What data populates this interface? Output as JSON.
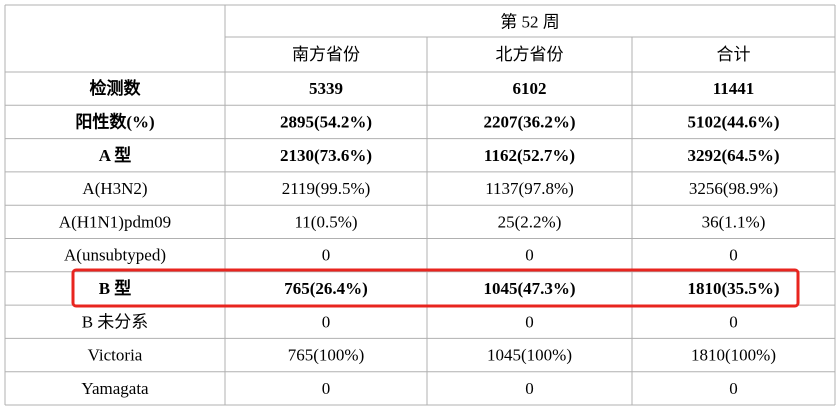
{
  "header": {
    "title": "第 52 周",
    "columns": [
      "南方省份",
      "北方省份",
      "合计"
    ]
  },
  "table": {
    "rows": [
      {
        "cells": [
          "检测数",
          "5339",
          "6102",
          "11441"
        ],
        "bold": true
      },
      {
        "cells": [
          "阳性数(%)",
          "2895(54.2%)",
          "2207(36.2%)",
          "5102(44.6%)"
        ],
        "bold": true
      },
      {
        "cells": [
          "A 型",
          "2130(73.6%)",
          "1162(52.7%)",
          "3292(64.5%)"
        ],
        "bold": true
      },
      {
        "cells": [
          "A(H3N2)",
          "2119(99.5%)",
          "1137(97.8%)",
          "3256(98.9%)"
        ],
        "bold": false
      },
      {
        "cells": [
          "A(H1N1)pdm09",
          "11(0.5%)",
          "25(2.2%)",
          "36(1.1%)"
        ],
        "bold": false
      },
      {
        "cells": [
          "A(unsubtyped)",
          "0",
          "0",
          "0"
        ],
        "bold": false
      },
      {
        "cells": [
          "B 型",
          "765(26.4%)",
          "1045(47.3%)",
          "1810(35.5%)"
        ],
        "bold": true
      },
      {
        "cells": [
          "B 未分系",
          "0",
          "0",
          "0"
        ],
        "bold": false
      },
      {
        "cells": [
          "Victoria",
          "765(100%)",
          "1045(100%)",
          "1810(100%)"
        ],
        "bold": false
      },
      {
        "cells": [
          "Yamagata",
          "0",
          "0",
          "0"
        ],
        "bold": false
      }
    ]
  }
}
